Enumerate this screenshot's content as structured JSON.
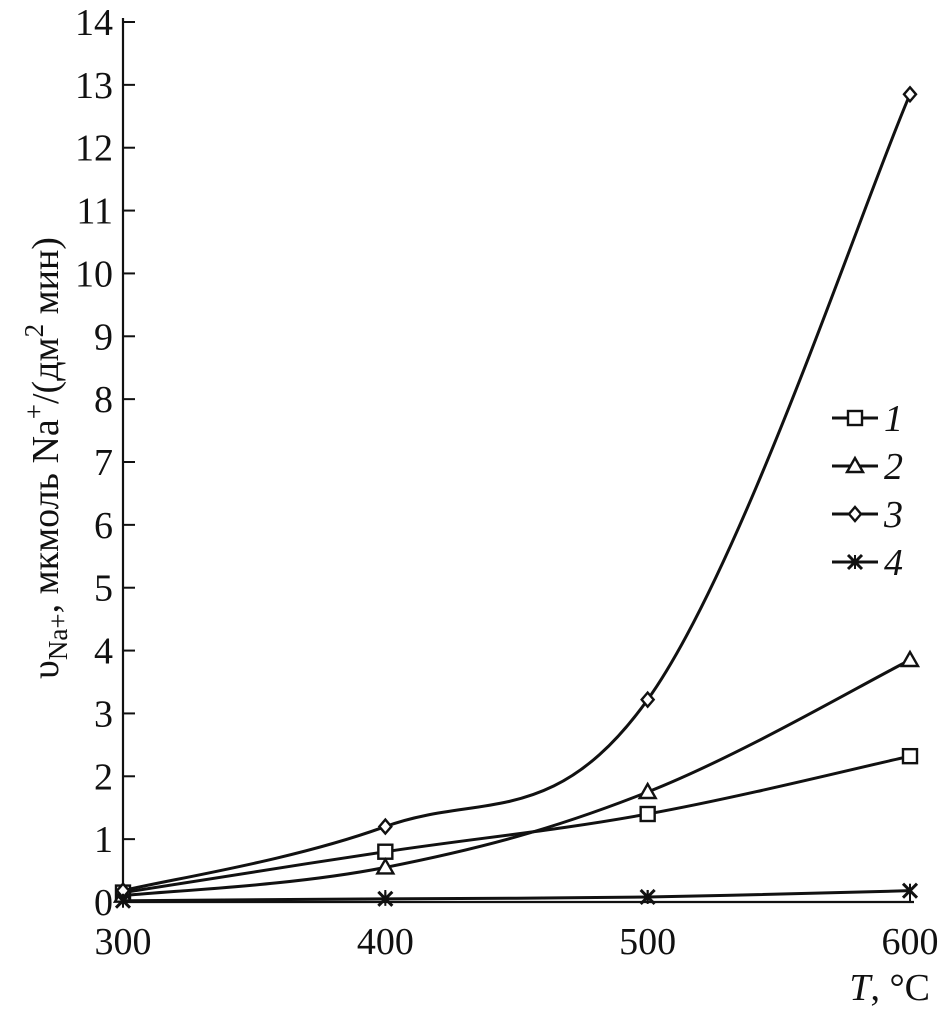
{
  "chart_data": {
    "type": "line",
    "x": [
      300,
      400,
      500,
      600
    ],
    "xlim": [
      300,
      600
    ],
    "ylim": [
      0,
      14
    ],
    "xticks": [
      "300",
      "400",
      "500",
      "600"
    ],
    "yticks": [
      "0",
      "1",
      "2",
      "3",
      "4",
      "5",
      "6",
      "7",
      "8",
      "9",
      "10",
      "11",
      "12",
      "13",
      "14"
    ],
    "xlabel": {
      "symbol": "T",
      "rest": ", °C"
    },
    "ylabel": {
      "symbol": "υ",
      "subscript": "Na+",
      "text": ", мкмоль Na",
      "superscript": "+",
      "unit": "/(дм",
      "unit_sup": "2",
      "unit_end": " мин)"
    },
    "grid": false,
    "legend_position": "right",
    "series": [
      {
        "name": "1",
        "marker": "square",
        "values": [
          0.15,
          0.8,
          1.4,
          2.32
        ]
      },
      {
        "name": "2",
        "marker": "triangle",
        "values": [
          0.1,
          0.55,
          1.75,
          3.85
        ]
      },
      {
        "name": "3",
        "marker": "diamond",
        "values": [
          0.18,
          1.2,
          3.22,
          12.85
        ]
      },
      {
        "name": "4",
        "marker": "cross",
        "values": [
          0.02,
          0.05,
          0.08,
          0.18
        ]
      }
    ]
  }
}
